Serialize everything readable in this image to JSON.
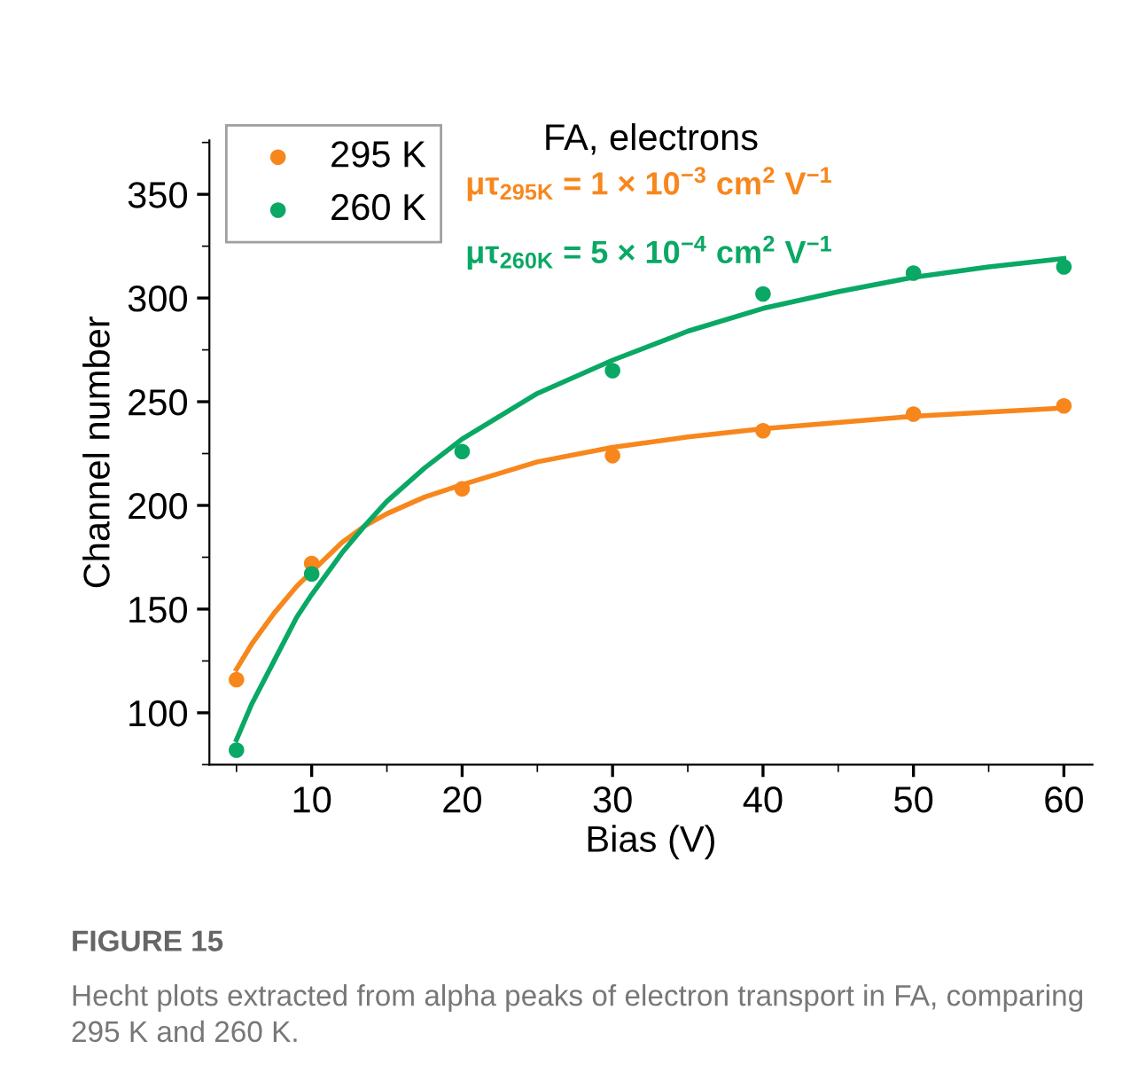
{
  "chart_data": {
    "type": "scatter",
    "title": "FA, electrons",
    "xlabel": "Bias (V)",
    "ylabel": "Channel number",
    "xlim": [
      3.2,
      61.9
    ],
    "xticks": [
      10,
      20,
      30,
      40,
      50,
      60
    ],
    "ylim": [
      75,
      376
    ],
    "yticks": [
      100,
      150,
      200,
      250,
      300,
      350
    ],
    "grid": false,
    "legend": "top left",
    "series": [
      {
        "name": "295 K",
        "color": "#f7871d",
        "marker": "circle",
        "x": [
          5,
          10,
          20,
          30,
          40,
          50,
          60
        ],
        "values": [
          116,
          172,
          208,
          224,
          236,
          244,
          248
        ]
      },
      {
        "name": "260 K",
        "color": "#0aa865",
        "marker": "circle",
        "x": [
          5,
          10,
          20,
          30,
          40,
          50,
          60
        ],
        "values": [
          82,
          167,
          226,
          265,
          302,
          312,
          315
        ]
      },
      {
        "type": "line",
        "color": "#f7871d",
        "marker": "none",
        "line_style": "solid",
        "x": [
          5,
          6,
          7.5,
          9,
          10,
          12,
          13.5,
          15,
          17.5,
          20,
          25,
          30,
          35,
          40,
          45,
          50,
          55,
          60
        ],
        "values": [
          121,
          133,
          148,
          161,
          168,
          182,
          190,
          196,
          204,
          210,
          221,
          228,
          233,
          237,
          240,
          243,
          245,
          247
        ]
      },
      {
        "type": "line",
        "color": "#0aa865",
        "marker": "none",
        "line_style": "solid",
        "x": [
          5,
          6,
          7.5,
          9,
          10,
          12,
          13.5,
          15,
          17.5,
          20,
          25,
          30,
          35,
          40,
          45,
          50,
          55,
          60
        ],
        "values": [
          87,
          104,
          125,
          146,
          157,
          177,
          190,
          202,
          218,
          232,
          254,
          270,
          284,
          295,
          303,
          310,
          315,
          319
        ]
      }
    ],
    "annotations": [
      "μτ$_{295K}$ = 1 × 10$^{−3}$ cm$^{2}$ V$^{−1}$",
      "μτ$_{260K}$ = 5 × 10$^{−4}$ cm$^{2}$ V$^{−1}$",
      "FIGURE 15",
      "Hecht plots extracted from alpha peaks of electron transport in FA, comparing 295 K and 260 K."
    ]
  }
}
